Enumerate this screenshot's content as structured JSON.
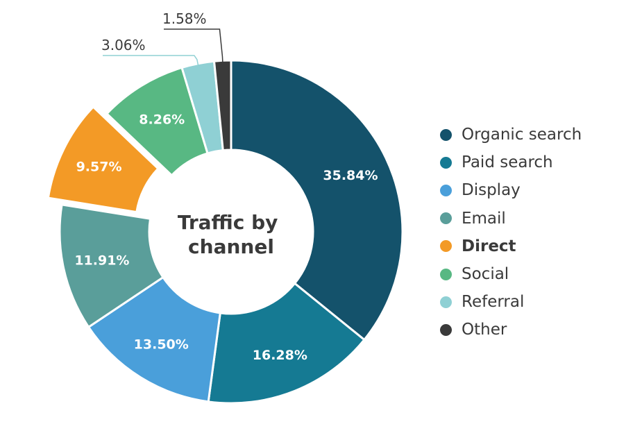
{
  "chart_data": {
    "type": "pie",
    "title": "Traffic by channel",
    "title_lines": [
      "Traffic by",
      "channel"
    ],
    "unit": "%",
    "highlighted": "Direct",
    "slices": [
      {
        "label": "Organic search",
        "value": 35.84,
        "display": "35.84%",
        "color": "#14526b"
      },
      {
        "label": "Paid search",
        "value": 16.28,
        "display": "16.28%",
        "color": "#157a93"
      },
      {
        "label": "Display",
        "value": 13.5,
        "display": "13.50%",
        "color": "#4a9fda"
      },
      {
        "label": "Email",
        "value": 11.91,
        "display": "11.91%",
        "color": "#5a9e9a"
      },
      {
        "label": "Direct",
        "value": 9.57,
        "display": "9.57%",
        "color": "#f39a26"
      },
      {
        "label": "Social",
        "value": 8.26,
        "display": "8.26%",
        "color": "#58b883"
      },
      {
        "label": "Referral",
        "value": 3.06,
        "display": "3.06%",
        "color": "#8fd0d4"
      },
      {
        "label": "Other",
        "value": 1.58,
        "display": "1.58%",
        "color": "#3a3a3a"
      }
    ],
    "legend_position": "right"
  }
}
